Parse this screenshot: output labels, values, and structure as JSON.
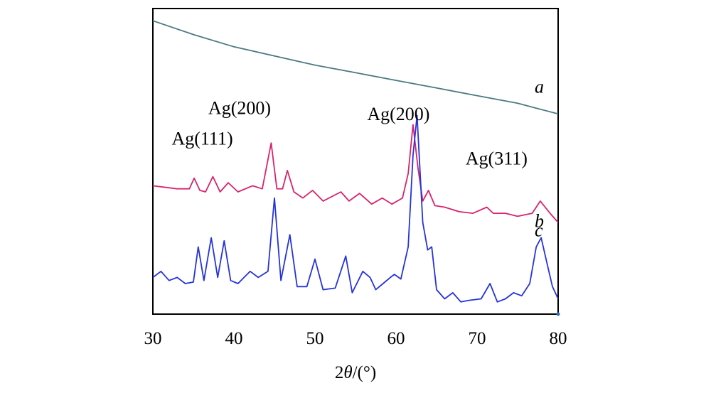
{
  "chart_data": {
    "type": "line",
    "title": "",
    "xlabel_prefix": "2",
    "xlabel_theta": "θ",
    "xlabel_unit": "/(°)",
    "ylabel": "",
    "xlim": [
      30,
      80
    ],
    "ylim": [
      0,
      100
    ],
    "x_ticks": [
      30,
      40,
      50,
      60,
      70,
      80
    ],
    "grid": false,
    "legend": "none",
    "series": [
      {
        "name": "a",
        "color": "#4a7a80",
        "x": [
          30,
          35,
          40,
          45,
          50,
          55,
          60,
          65,
          70,
          75,
          80
        ],
        "y": [
          96,
          91.5,
          87.5,
          84.5,
          81.5,
          79,
          76.5,
          74,
          71.5,
          69,
          65.5
        ]
      },
      {
        "name": "b",
        "color": "#d6246e",
        "x": [
          30,
          33,
          34.5,
          35.1,
          35.8,
          36.5,
          37.4,
          38.3,
          39.3,
          40.5,
          42.3,
          43.5,
          44.6,
          45.3,
          46.0,
          46.6,
          47.4,
          48.5,
          49.7,
          51.0,
          53.2,
          54.2,
          55.5,
          57.0,
          58.3,
          59.5,
          60.8,
          61.5,
          62.1,
          62.7,
          63.3,
          64.0,
          64.8,
          66.0,
          67.8,
          69.5,
          71.2,
          72.0,
          73.5,
          75.0,
          76.8,
          77.8,
          79.0,
          80.0
        ],
        "y": [
          42,
          41,
          41,
          44.5,
          40.5,
          40,
          45,
          40,
          43,
          40,
          42,
          41,
          56,
          41,
          41,
          47,
          40,
          38,
          40.5,
          37,
          40,
          37,
          39.5,
          36,
          38,
          36,
          38,
          46,
          62,
          48,
          37,
          40.5,
          35.5,
          35,
          33.5,
          33,
          35,
          33,
          33,
          32,
          33,
          37,
          33,
          30
        ]
      },
      {
        "name": "c",
        "color": "#2633d9",
        "x": [
          30,
          31,
          32,
          33,
          34,
          35,
          35.6,
          36.3,
          37.2,
          38.0,
          38.8,
          39.6,
          40.5,
          42.0,
          43.0,
          44.2,
          45.0,
          45.8,
          46.9,
          47.8,
          49.0,
          50.0,
          51.0,
          52.5,
          53.8,
          54.6,
          55.9,
          56.8,
          57.5,
          58.4,
          59.3,
          59.8,
          60.6,
          61.5,
          62.1,
          62.6,
          63.3,
          63.9,
          64.4,
          65.0,
          66.0,
          67.0,
          68.0,
          69.0,
          70.5,
          71.6,
          72.5,
          73.5,
          74.5,
          75.5,
          76.5,
          77.3,
          77.9,
          78.6,
          79.3,
          80.0
        ],
        "y": [
          12,
          14,
          11,
          12,
          10,
          10.5,
          22,
          11,
          25,
          12,
          24,
          11,
          10,
          14,
          12,
          14,
          38,
          11,
          26,
          9,
          9,
          18,
          8,
          8.5,
          19,
          7,
          14,
          12,
          8,
          10,
          12,
          13,
          11.5,
          22,
          52,
          65,
          30,
          21,
          22,
          8,
          5,
          7,
          4,
          4.5,
          5,
          10,
          4,
          5,
          7,
          6,
          10,
          22,
          25,
          17,
          9,
          5
        ]
      }
    ],
    "series_labels": [
      {
        "text": "a",
        "x": 77.1,
        "y": 72.5
      },
      {
        "text": "b",
        "x": 77.1,
        "y": 28.5
      },
      {
        "text": "c",
        "x": 77.1,
        "y": 25.5
      }
    ],
    "annotations": [
      {
        "text": "Ag(111)",
        "x": 36.1,
        "y": 55.5
      },
      {
        "text": "Ag(200)",
        "x": 40.7,
        "y": 65.5
      },
      {
        "text": "Ag(200)",
        "x": 60.3,
        "y": 63.5
      },
      {
        "text": "Ag(311)",
        "x": 72.4,
        "y": 49
      }
    ]
  }
}
